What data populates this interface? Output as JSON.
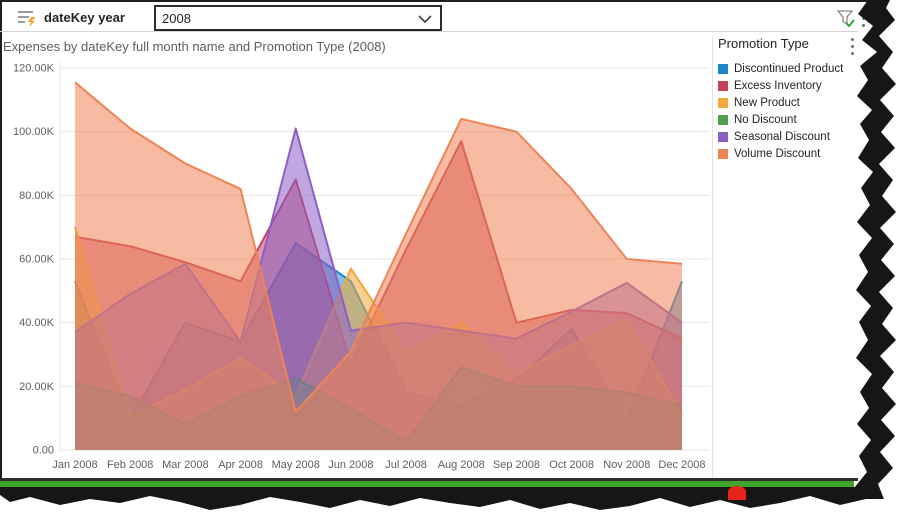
{
  "topbar": {
    "slicer": {
      "label": "dateKey year",
      "value": "2008"
    }
  },
  "chart": {
    "title": "Expenses by dateKey full month name and Promotion Type (2008)"
  },
  "legend": {
    "title": "Promotion Type",
    "items": [
      {
        "label": "Discontinued Product",
        "color": "#1E87C9"
      },
      {
        "label": "Excess Inventory",
        "color": "#C8415B"
      },
      {
        "label": "New Product",
        "color": "#F2A83A"
      },
      {
        "label": "No Discount",
        "color": "#4EA24E"
      },
      {
        "label": "Seasonal Discount",
        "color": "#8D5EC5"
      },
      {
        "label": "Volume Discount",
        "color": "#EE8456"
      }
    ]
  },
  "chart_data": {
    "type": "area",
    "overlapping": true,
    "title": "Expenses by dateKey full month name and Promotion Type (2008)",
    "xlabel": "",
    "ylabel": "",
    "grid": true,
    "legend_position": "right",
    "ylim": [
      0,
      120000
    ],
    "y_ticks": [
      "0.00",
      "20.00K",
      "40.00K",
      "60.00K",
      "80.00K",
      "100.00K",
      "120.00K"
    ],
    "x": [
      "Jan 2008",
      "Feb 2008",
      "Mar 2008",
      "Apr 2008",
      "May 2008",
      "Jun 2008",
      "Jul 2008",
      "Aug 2008",
      "Sep 2008",
      "Oct 2008",
      "Nov 2008",
      "Dec 2008"
    ],
    "series": [
      {
        "name": "Discontinued Product",
        "color": "#1E87C9",
        "values": [
          53000,
          9500,
          40000,
          34000,
          65000,
          53000,
          18000,
          14000,
          22000,
          38000,
          9000,
          53000
        ]
      },
      {
        "name": "Excess Inventory",
        "color": "#C8415B",
        "values": [
          67000,
          64000,
          59000,
          53000,
          85000,
          27000,
          63000,
          97000,
          40000,
          44000,
          43000,
          35000
        ]
      },
      {
        "name": "New Product",
        "color": "#F2A83A",
        "values": [
          70000,
          10500,
          19000,
          29000,
          17000,
          57000,
          31000,
          40000,
          24000,
          33000,
          41000,
          11000
        ]
      },
      {
        "name": "No Discount",
        "color": "#4EA24E",
        "values": [
          21000,
          17000,
          8000,
          17000,
          22500,
          13000,
          2500,
          26000,
          20000,
          20000,
          18000,
          14000
        ]
      },
      {
        "name": "Seasonal Discount",
        "color": "#8D5EC5",
        "values": [
          37000,
          49000,
          58500,
          34000,
          101000,
          37500,
          40000,
          37500,
          35000,
          43500,
          52500,
          40000
        ]
      },
      {
        "name": "Volume Discount",
        "color": "#EE8456",
        "values": [
          115500,
          101000,
          90000,
          82000,
          12000,
          31000,
          68000,
          104000,
          100000,
          82000,
          60000,
          58500
        ]
      }
    ]
  },
  "colors": {
    "title_text": "#605E5C",
    "axis_text": "#605E5C",
    "legend_text": "#252423",
    "gridline": "#E6E6E6",
    "green_edge": "#3FA42A",
    "torn_edge": "#161616",
    "red_dot": "#E8251D",
    "filter_check": "#1EA81E"
  }
}
